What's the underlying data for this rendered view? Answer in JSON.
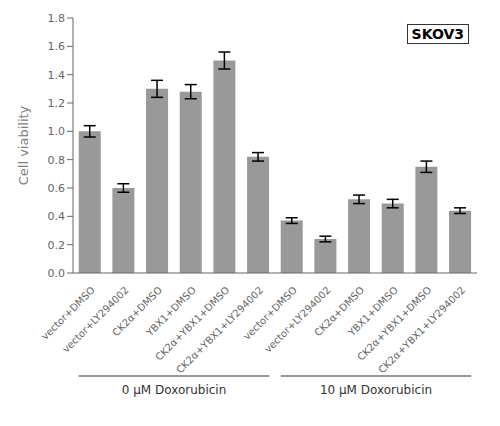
{
  "chart_data": {
    "type": "bar",
    "categories": [
      "vector+DMSO",
      "vector+LY294002",
      "CK2α+DMSO",
      "YBX1+DMSO",
      "CK2α+YBX1+DMSO",
      "CK2α+YBX1+LY294002",
      "vector+DMSO",
      "vector+LY294002",
      "CK2α+DMSO",
      "YBX1+DMSO",
      "CK2α+YBX1+DMSO",
      "CK2α+YBX1+LY294002"
    ],
    "values": [
      1.0,
      0.6,
      1.3,
      1.28,
      1.5,
      0.82,
      0.37,
      0.24,
      0.52,
      0.49,
      0.75,
      0.44
    ],
    "errors": [
      0.04,
      0.03,
      0.06,
      0.05,
      0.06,
      0.03,
      0.02,
      0.02,
      0.03,
      0.03,
      0.04,
      0.02
    ],
    "color": "#999999",
    "ylabel": "Cell viability",
    "annotation": "SKOV3",
    "group_labels": [
      "0 μM Doxorubicin",
      "10 μM Doxorubicin"
    ],
    "ylim": [
      0,
      1.8
    ],
    "yticks": [
      {
        "value": 0,
        "label": "0.0"
      },
      0.2,
      0.4,
      0.6,
      0.8,
      {
        "value": 1,
        "label": "1.0"
      },
      1.2,
      1.4,
      1.6,
      1.8
    ],
    "grid": false
  }
}
